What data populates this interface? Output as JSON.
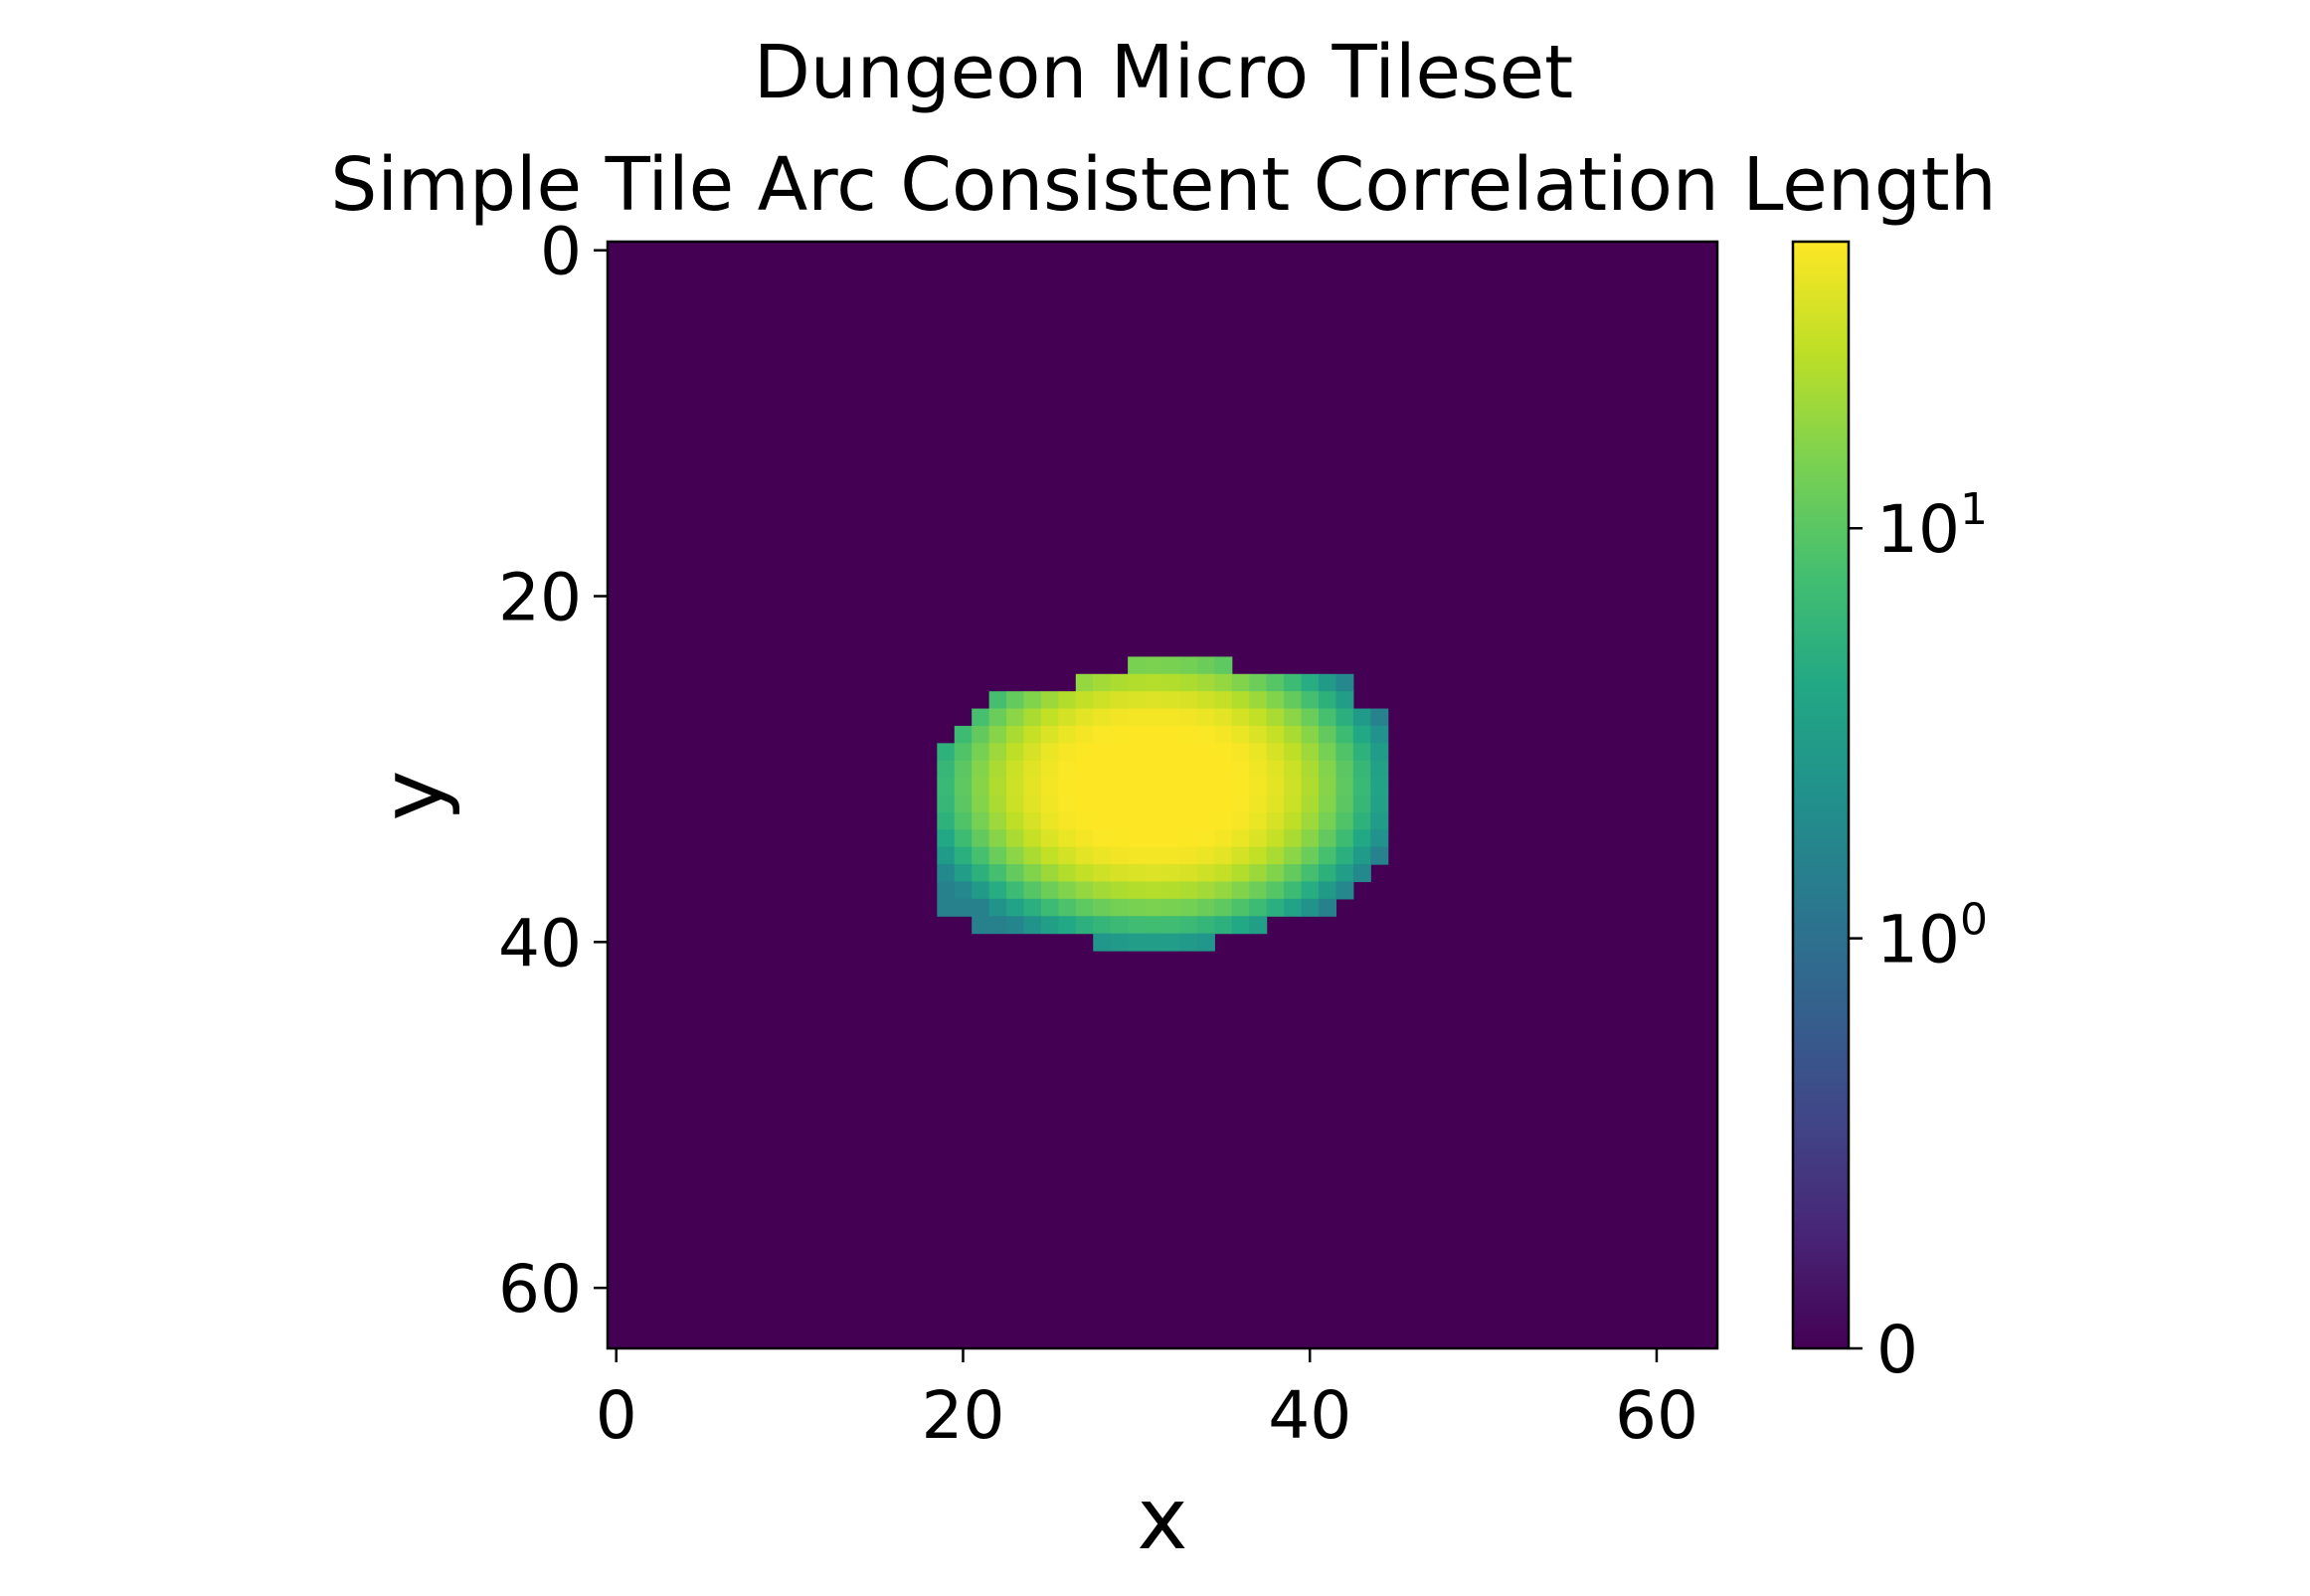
{
  "chart_data": {
    "type": "heatmap",
    "title_line1": "Dungeon Micro Tileset",
    "title_line2": "Simple Tile Arc Consistent Correlation Length",
    "xlabel": "x",
    "ylabel": "y",
    "grid_size": 64,
    "xlim": [
      -0.5,
      63.5
    ],
    "ylim": [
      63.5,
      -0.5
    ],
    "x_ticks": [
      0,
      20,
      40,
      60
    ],
    "y_ticks": [
      0,
      20,
      40,
      60
    ],
    "grid": false,
    "colormap": "viridis",
    "colorbar": {
      "scale": "symlog",
      "vmin": 0,
      "vmax": 50,
      "linthresh": 1,
      "ticks": [
        {
          "value": 0,
          "base": "0",
          "exp": ""
        },
        {
          "value": 1,
          "base": "10",
          "exp": "0"
        },
        {
          "value": 10,
          "base": "10",
          "exp": "1"
        }
      ]
    },
    "blob": {
      "description_of_values": "non-zero region roughly rows 24-40, columns 19-44; peak near (31, 31)",
      "row_ranges": [
        [
          24,
          30,
          35
        ],
        [
          25,
          27,
          42
        ],
        [
          26,
          22,
          42
        ],
        [
          27,
          21,
          44
        ],
        [
          28,
          20,
          44
        ],
        [
          29,
          19,
          44
        ],
        [
          30,
          19,
          44
        ],
        [
          31,
          19,
          44
        ],
        [
          32,
          19,
          44
        ],
        [
          33,
          19,
          44
        ],
        [
          34,
          19,
          44
        ],
        [
          35,
          19,
          44
        ],
        [
          36,
          19,
          43
        ],
        [
          37,
          19,
          42
        ],
        [
          38,
          19,
          41
        ],
        [
          39,
          21,
          37
        ],
        [
          40,
          28,
          34
        ]
      ],
      "center": [
        31,
        31
      ],
      "radius": [
        12.5,
        8.5
      ],
      "peak": 50
    },
    "colors": {
      "background": "#440154",
      "frame": "#000000"
    }
  }
}
